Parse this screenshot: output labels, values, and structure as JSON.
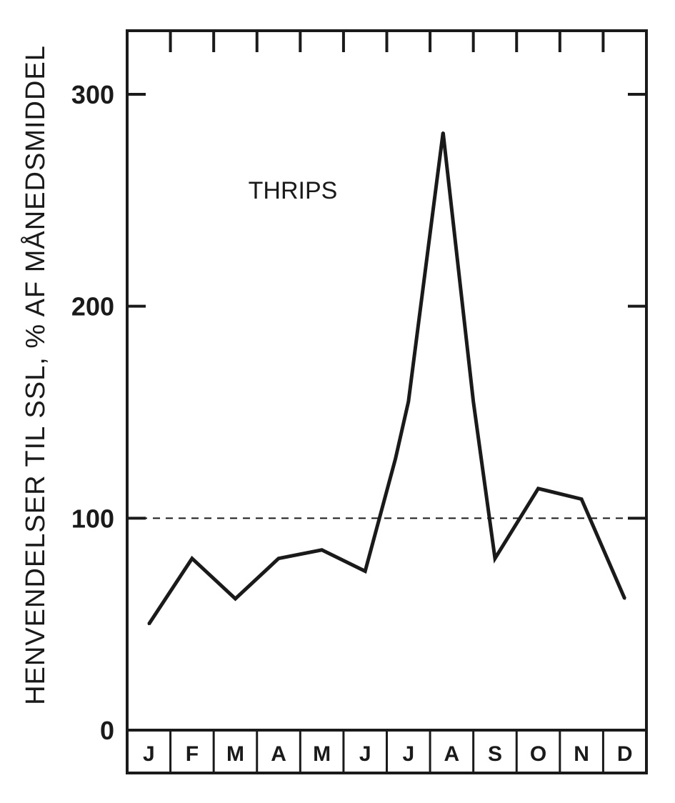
{
  "chart_data": {
    "type": "line",
    "title": "",
    "xlabel": "",
    "ylabel": "HENVENDELSER TIL SSL, % AF MÅNEDSMIDDEL",
    "annotation": "THRIPS",
    "ylim": [
      0,
      330
    ],
    "yticks": [
      0,
      100,
      200,
      300
    ],
    "reference_line": {
      "value": 100,
      "style": "dashed"
    },
    "grid": false,
    "categories": [
      "J",
      "F",
      "M",
      "A",
      "M",
      "J",
      "J",
      "A",
      "S",
      "O",
      "N",
      "D"
    ],
    "series": [
      {
        "x": [
          0.5,
          1.5,
          2.5,
          3.5,
          4.5,
          5.5,
          6.2,
          6.5,
          7.3,
          8.0,
          8.5,
          9.5,
          10.5,
          11.5
        ],
        "values": [
          50,
          81,
          62,
          81,
          85,
          75,
          128,
          155,
          282,
          155,
          81,
          114,
          109,
          62
        ]
      }
    ]
  }
}
